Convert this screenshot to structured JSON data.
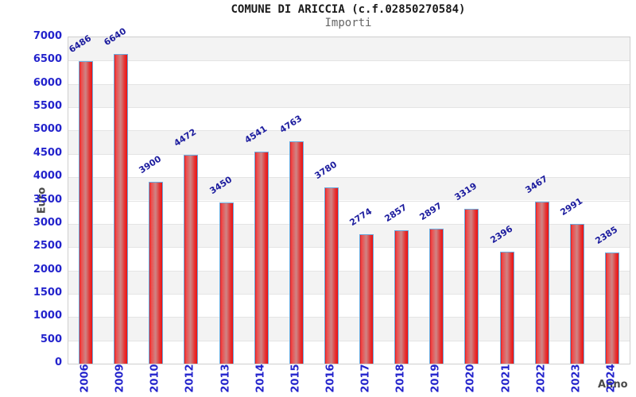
{
  "header": {
    "title": "COMUNE DI ARICCIA (c.f.02850270584)",
    "subtitle": "Importi"
  },
  "colors": {
    "bar_red": "#e01818",
    "bar_highlight": "#cf8585",
    "bar_border": "#6aaade",
    "tick_label_blue": "#2323cc",
    "value_label_navy": "#1c1c9e",
    "band_gray": "#f3f3f3",
    "grid_line": "#e4e4e4",
    "plot_border": "#cfcfcf",
    "axis_title_gray": "#4a4a4a",
    "title_black": "#1a1a1a",
    "subtitle_gray": "#666666"
  },
  "chart_data": {
    "type": "bar",
    "title": "COMUNE DI ARICCIA (c.f.02850270584)",
    "subtitle": "Importi",
    "xlabel": "Anno",
    "ylabel": "Euro",
    "categories": [
      "2006",
      "2009",
      "2010",
      "2012",
      "2013",
      "2014",
      "2015",
      "2016",
      "2017",
      "2018",
      "2019",
      "2020",
      "2021",
      "2022",
      "2023",
      "2024"
    ],
    "values": [
      6486,
      6640,
      3900,
      4472,
      3450,
      4541,
      4763,
      3780,
      2774,
      2857,
      2897,
      3319,
      2396,
      3467,
      2991,
      2385
    ],
    "ylim": [
      0,
      7000
    ],
    "y_tick_step": 500,
    "y_ticks": [
      0,
      500,
      1000,
      1500,
      2000,
      2500,
      3000,
      3500,
      4000,
      4500,
      5000,
      5500,
      6000,
      6500,
      7000
    ],
    "grid": "alternating-horizontal-bands",
    "legend": "none",
    "bar_value_labels": "rotated-above-bars"
  }
}
